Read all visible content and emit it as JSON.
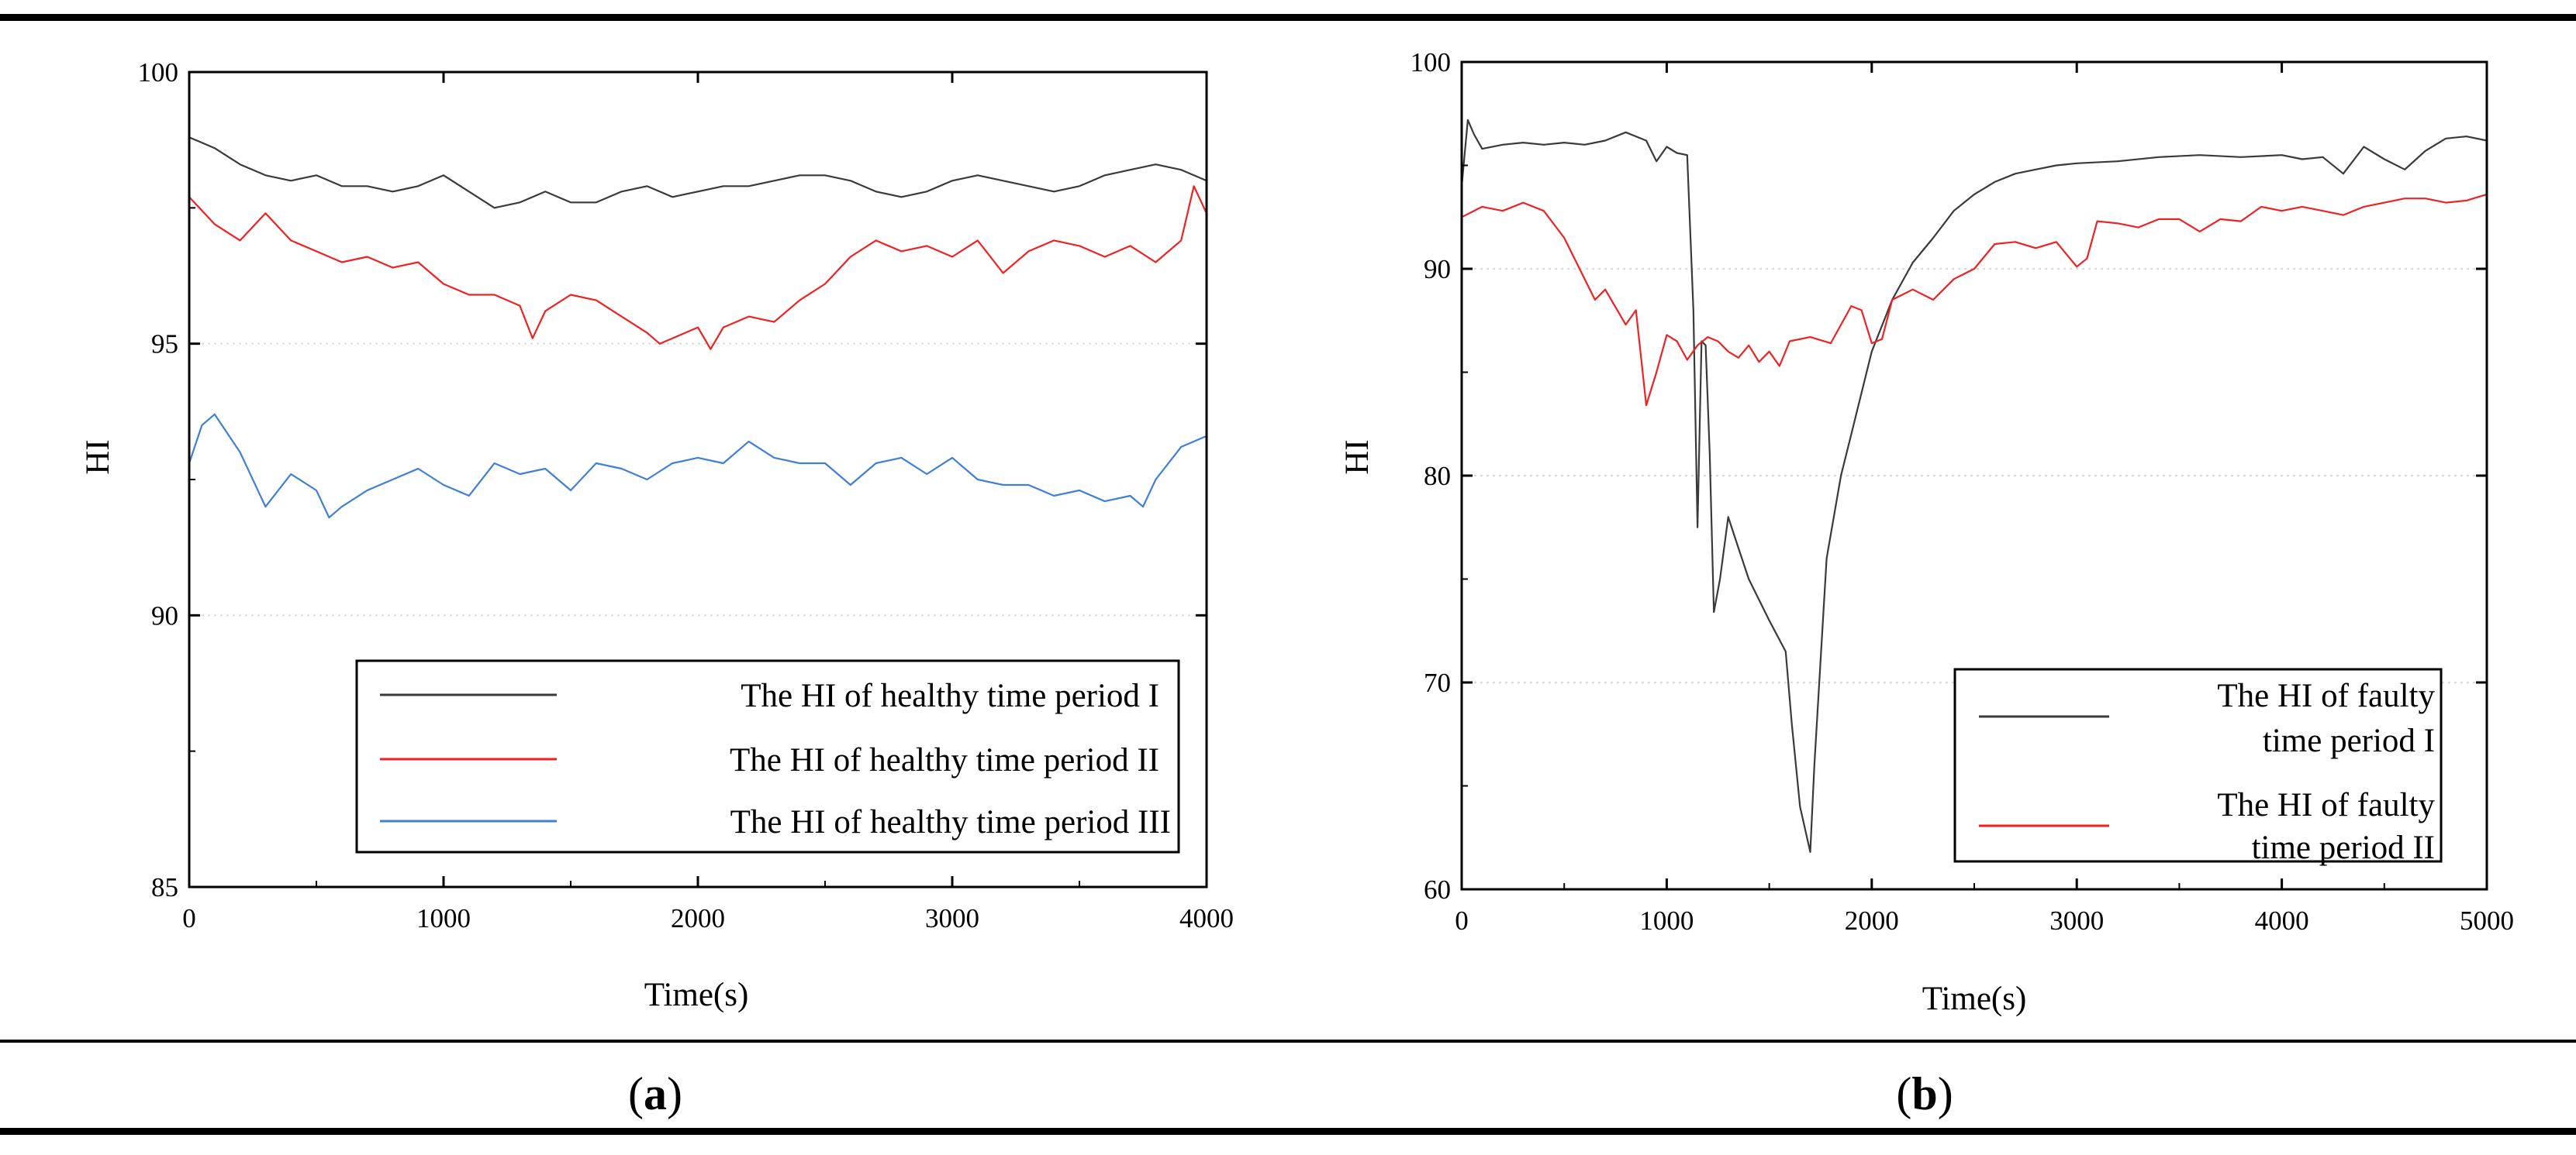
{
  "chart_data": [
    {
      "type": "line",
      "panel_label": "a",
      "xlabel": "Time(s)",
      "ylabel": "HI",
      "xlim": [
        0,
        4000
      ],
      "ylim": [
        85,
        100
      ],
      "x_ticks": [
        0,
        1000,
        2000,
        3000,
        4000
      ],
      "y_ticks": [
        85,
        90,
        95,
        100
      ],
      "grid": true,
      "legend_position": "bottom-right",
      "series": [
        {
          "name": "The HI of healthy time period I",
          "color": "#3a3a3a",
          "x": [
            0,
            100,
            200,
            300,
            400,
            500,
            600,
            700,
            800,
            900,
            1000,
            1100,
            1200,
            1300,
            1400,
            1500,
            1600,
            1700,
            1800,
            1900,
            2000,
            2100,
            2200,
            2300,
            2400,
            2500,
            2600,
            2700,
            2800,
            2900,
            3000,
            3100,
            3200,
            3300,
            3400,
            3500,
            3600,
            3700,
            3800,
            3900,
            4000
          ],
          "y": [
            98.8,
            98.6,
            98.3,
            98.1,
            98.0,
            98.1,
            97.9,
            97.9,
            97.8,
            97.9,
            98.1,
            97.8,
            97.5,
            97.6,
            97.8,
            97.6,
            97.6,
            97.8,
            97.9,
            97.7,
            97.8,
            97.9,
            97.9,
            98.0,
            98.1,
            98.1,
            98.0,
            97.8,
            97.7,
            97.8,
            98.0,
            98.1,
            98.0,
            97.9,
            97.8,
            97.9,
            98.1,
            98.2,
            98.3,
            98.2,
            98.0
          ]
        },
        {
          "name": "The HI of healthy time period II",
          "color": "#ee2222",
          "x": [
            0,
            100,
            200,
            300,
            400,
            500,
            600,
            700,
            800,
            900,
            1000,
            1100,
            1200,
            1300,
            1350,
            1400,
            1500,
            1600,
            1700,
            1800,
            1850,
            1900,
            2000,
            2050,
            2100,
            2200,
            2300,
            2400,
            2500,
            2600,
            2700,
            2800,
            2900,
            3000,
            3100,
            3200,
            3300,
            3400,
            3500,
            3600,
            3700,
            3800,
            3900,
            3950,
            4000
          ],
          "y": [
            97.7,
            97.2,
            96.9,
            97.4,
            96.9,
            96.7,
            96.5,
            96.6,
            96.4,
            96.5,
            96.1,
            95.9,
            95.9,
            95.7,
            95.1,
            95.6,
            95.9,
            95.8,
            95.5,
            95.2,
            95.0,
            95.1,
            95.3,
            94.9,
            95.3,
            95.5,
            95.4,
            95.8,
            96.1,
            96.6,
            96.9,
            96.7,
            96.8,
            96.6,
            96.9,
            96.3,
            96.7,
            96.9,
            96.8,
            96.6,
            96.8,
            96.5,
            96.9,
            97.9,
            97.4
          ]
        },
        {
          "name": "The HI of healthy time period III",
          "color": "#3f7fd6",
          "x": [
            0,
            50,
            100,
            200,
            300,
            400,
            500,
            550,
            600,
            700,
            800,
            900,
            1000,
            1100,
            1200,
            1300,
            1400,
            1500,
            1600,
            1700,
            1800,
            1900,
            2000,
            2100,
            2200,
            2300,
            2400,
            2500,
            2600,
            2700,
            2800,
            2900,
            3000,
            3100,
            3200,
            3300,
            3400,
            3500,
            3600,
            3700,
            3750,
            3800,
            3900,
            4000
          ],
          "y": [
            92.8,
            93.5,
            93.7,
            93.0,
            92.0,
            92.6,
            92.3,
            91.8,
            92.0,
            92.3,
            92.5,
            92.7,
            92.4,
            92.2,
            92.8,
            92.6,
            92.7,
            92.3,
            92.8,
            92.7,
            92.5,
            92.8,
            92.9,
            92.8,
            93.2,
            92.9,
            92.8,
            92.8,
            92.4,
            92.8,
            92.9,
            92.6,
            92.9,
            92.5,
            92.4,
            92.4,
            92.2,
            92.3,
            92.1,
            92.2,
            92.0,
            92.5,
            93.1,
            93.3
          ]
        }
      ]
    },
    {
      "type": "line",
      "panel_label": "b",
      "xlabel": "Time(s)",
      "ylabel": "HI",
      "xlim": [
        0,
        5000
      ],
      "ylim": [
        60,
        100
      ],
      "x_ticks": [
        0,
        1000,
        2000,
        3000,
        4000,
        5000
      ],
      "y_ticks": [
        60,
        70,
        80,
        90,
        100
      ],
      "grid": true,
      "legend_position": "bottom-right",
      "series": [
        {
          "name": "The HI of faulty time period I",
          "color": "#3a3a3a",
          "x": [
            0,
            30,
            60,
            100,
            200,
            300,
            400,
            500,
            600,
            700,
            800,
            900,
            950,
            1000,
            1050,
            1100,
            1130,
            1150,
            1170,
            1190,
            1210,
            1230,
            1260,
            1300,
            1350,
            1400,
            1500,
            1580,
            1610,
            1650,
            1700,
            1720,
            1780,
            1850,
            1900,
            2000,
            2100,
            2200,
            2300,
            2400,
            2500,
            2600,
            2700,
            2800,
            2900,
            3000,
            3200,
            3400,
            3600,
            3800,
            4000,
            4100,
            4200,
            4300,
            4400,
            4500,
            4600,
            4700,
            4800,
            4900,
            5000
          ],
          "y": [
            94.0,
            97.2,
            96.5,
            95.8,
            96.0,
            96.1,
            96.0,
            96.1,
            96.0,
            96.2,
            96.6,
            96.2,
            95.2,
            95.9,
            95.6,
            95.5,
            88.0,
            77.5,
            86.5,
            86.3,
            81.0,
            73.4,
            75.0,
            78.0,
            76.5,
            75.0,
            73.0,
            71.5,
            68.0,
            64.0,
            61.8,
            66.0,
            76.0,
            80.0,
            82.0,
            86.0,
            88.5,
            90.3,
            91.5,
            92.8,
            93.6,
            94.2,
            94.6,
            94.8,
            95.0,
            95.1,
            95.2,
            95.4,
            95.5,
            95.4,
            95.5,
            95.3,
            95.4,
            94.6,
            95.9,
            95.3,
            94.8,
            95.7,
            96.3,
            96.4,
            96.2
          ]
        },
        {
          "name": "The HI of faulty time period II",
          "color": "#ee2222",
          "x": [
            0,
            100,
            200,
            300,
            400,
            500,
            600,
            650,
            700,
            800,
            850,
            900,
            950,
            1000,
            1050,
            1100,
            1150,
            1200,
            1250,
            1300,
            1350,
            1400,
            1450,
            1500,
            1550,
            1600,
            1700,
            1800,
            1900,
            1950,
            2000,
            2050,
            2100,
            2200,
            2300,
            2400,
            2500,
            2600,
            2700,
            2800,
            2900,
            3000,
            3050,
            3100,
            3200,
            3300,
            3400,
            3500,
            3600,
            3700,
            3800,
            3900,
            4000,
            4100,
            4200,
            4300,
            4400,
            4500,
            4600,
            4700,
            4800,
            4900,
            5000
          ],
          "y": [
            92.5,
            93.0,
            92.8,
            93.2,
            92.8,
            91.5,
            89.5,
            88.5,
            89.0,
            87.3,
            88.0,
            83.4,
            85.0,
            86.8,
            86.5,
            85.6,
            86.3,
            86.7,
            86.5,
            86.0,
            85.7,
            86.3,
            85.5,
            86.0,
            85.3,
            86.5,
            86.7,
            86.4,
            88.2,
            88.0,
            86.4,
            86.6,
            88.5,
            89.0,
            88.5,
            89.5,
            90.0,
            91.2,
            91.3,
            91.0,
            91.3,
            90.1,
            90.5,
            92.3,
            92.2,
            92.0,
            92.4,
            92.4,
            91.8,
            92.4,
            92.3,
            93.0,
            92.8,
            93.0,
            92.8,
            92.6,
            93.0,
            93.2,
            93.4,
            93.4,
            93.2,
            93.3,
            93.6
          ]
        }
      ]
    }
  ],
  "panel_a": {
    "label": "a",
    "legend": [
      "The HI of healthy time period I",
      "The HI of healthy time period II",
      "The HI of healthy time period III"
    ]
  },
  "panel_b": {
    "label": "b",
    "legend": [
      [
        "The HI of faulty",
        "time period I"
      ],
      [
        "The HI of faulty",
        "time period II"
      ]
    ]
  },
  "colors": {
    "series1": "#3a3a3a",
    "series2": "#ee2222",
    "series3": "#3f7fd6",
    "grid": "#d9d9d9"
  }
}
